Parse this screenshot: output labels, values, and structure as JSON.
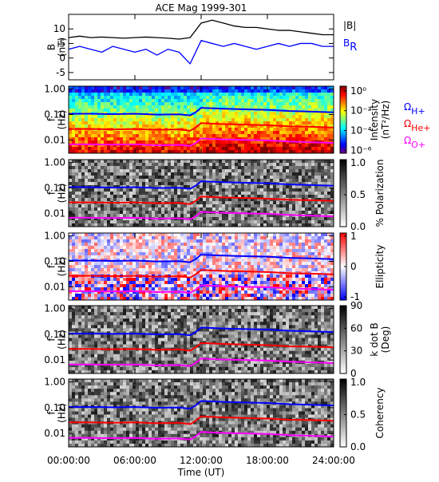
{
  "chart_data": [
    {
      "type": "line",
      "title": "ACE Mag 1999-301",
      "ylabel": [
        "B",
        "(nT)"
      ],
      "x": [
        0,
        1,
        2,
        3,
        4,
        5,
        6,
        7,
        8,
        9,
        10,
        11,
        12,
        13,
        14,
        15,
        16,
        17,
        18,
        19,
        20,
        21,
        22,
        23,
        24
      ],
      "xlim": [
        0,
        24
      ],
      "ylim": [
        -7.5,
        15
      ],
      "yticks": [
        -5,
        0,
        5,
        10
      ],
      "series": [
        {
          "name": "|B|",
          "color": "#000000",
          "values": [
            7,
            7.5,
            7,
            7.2,
            7,
            6.8,
            7,
            7.2,
            7,
            6.8,
            6.5,
            7,
            12,
            13,
            12,
            11,
            10.5,
            10.5,
            10,
            9.5,
            9.5,
            9,
            8.5,
            8,
            8
          ]
        },
        {
          "name": "B",
          "name_sub": "R",
          "color": "#0000ff",
          "values": [
            3,
            4,
            3,
            2,
            4,
            3,
            2,
            3,
            1,
            3,
            2,
            -2,
            6,
            5,
            4,
            5,
            4,
            3,
            4,
            5,
            4,
            5,
            5,
            4,
            4
          ]
        }
      ]
    },
    {
      "type": "spectrogram",
      "ylabel": [
        "f",
        "(Hz)"
      ],
      "log_y": true,
      "ylim": [
        0.003,
        1.3
      ],
      "yticks": [
        {
          "value": 1,
          "label": "1.00"
        },
        {
          "value": 0.1,
          "label": "0.10"
        },
        {
          "value": 0.01,
          "label": "0.01"
        }
      ],
      "x": [
        0,
        2,
        4,
        6,
        8,
        10,
        11,
        11.5,
        12,
        14,
        16,
        18,
        20,
        22,
        24
      ],
      "xlim": [
        0,
        24
      ],
      "colormap": "jet",
      "log_c": true,
      "clim": [
        5e-07,
        3
      ],
      "cticks": [
        {
          "value": 1,
          "label": "10⁰"
        },
        {
          "value": 0.01,
          "label": "10⁻²"
        },
        {
          "value": 0.0001,
          "label": "10⁻⁴"
        },
        {
          "value": 1e-06,
          "label": "10⁻⁶"
        }
      ],
      "clabel": [
        "Intensity",
        "(nT²/Hz)"
      ],
      "series": [
        {
          "name": "Ω",
          "name_sub": "H+",
          "color": "#0000ff",
          "values": [
            0.107,
            0.107,
            0.104,
            0.107,
            0.099,
            0.102,
            0.092,
            0.122,
            0.183,
            0.168,
            0.16,
            0.153,
            0.137,
            0.13,
            0.122
          ]
        },
        {
          "name": "Ω",
          "name_sub": "He+",
          "color": "#ff0000",
          "values": [
            0.027,
            0.027,
            0.026,
            0.027,
            0.025,
            0.026,
            0.023,
            0.031,
            0.046,
            0.042,
            0.04,
            0.038,
            0.034,
            0.033,
            0.031
          ]
        },
        {
          "name": "Ω",
          "name_sub": "O+",
          "color": "#ff00ff",
          "values": [
            0.0067,
            0.0067,
            0.0065,
            0.0067,
            0.0062,
            0.0064,
            0.0058,
            0.0076,
            0.0114,
            0.0105,
            0.01,
            0.0096,
            0.0086,
            0.0081,
            0.0076
          ]
        }
      ]
    },
    {
      "type": "spectrogram",
      "ylabel": [
        "f",
        "(Hz)"
      ],
      "log_y": true,
      "ylim": [
        0.003,
        1.3
      ],
      "yticks": [
        {
          "value": 1,
          "label": "1.00"
        },
        {
          "value": 0.1,
          "label": "0.10"
        },
        {
          "value": 0.01,
          "label": "0.01"
        }
      ],
      "x": [
        0,
        2,
        4,
        6,
        8,
        10,
        11,
        11.5,
        12,
        14,
        16,
        18,
        20,
        22,
        24
      ],
      "xlim": [
        0,
        24
      ],
      "colormap": "gray_r",
      "clim": [
        0,
        1.05
      ],
      "cticks": [
        {
          "value": 0,
          "label": "0.0"
        },
        {
          "value": 0.5,
          "label": "0.5"
        },
        {
          "value": 1,
          "label": "1.0"
        }
      ],
      "clabel": [
        "% Polarization"
      ],
      "series": [
        {
          "color": "#0000ff",
          "values": [
            0.107,
            0.107,
            0.104,
            0.107,
            0.099,
            0.102,
            0.092,
            0.122,
            0.183,
            0.168,
            0.16,
            0.153,
            0.137,
            0.13,
            0.122
          ]
        },
        {
          "color": "#ff0000",
          "values": [
            0.027,
            0.027,
            0.026,
            0.027,
            0.025,
            0.026,
            0.023,
            0.031,
            0.046,
            0.042,
            0.04,
            0.038,
            0.034,
            0.033,
            0.031
          ]
        },
        {
          "color": "#ff00ff",
          "values": [
            0.0067,
            0.0067,
            0.0065,
            0.0067,
            0.0062,
            0.0064,
            0.0058,
            0.0076,
            0.0114,
            0.0105,
            0.01,
            0.0096,
            0.0086,
            0.0081,
            0.0076
          ]
        }
      ]
    },
    {
      "type": "spectrogram",
      "ylabel": [
        "f",
        "(Hz)"
      ],
      "log_y": true,
      "ylim": [
        0.003,
        1.3
      ],
      "yticks": [
        {
          "value": 1,
          "label": "1.00"
        },
        {
          "value": 0.1,
          "label": "0.10"
        },
        {
          "value": 0.01,
          "label": "0.01"
        }
      ],
      "x": [
        0,
        2,
        4,
        6,
        8,
        10,
        11,
        11.5,
        12,
        14,
        16,
        18,
        20,
        22,
        24
      ],
      "xlim": [
        0,
        24
      ],
      "colormap": "bwr",
      "clim": [
        -1.1,
        1.1
      ],
      "cticks": [
        1,
        0,
        -1
      ],
      "clabel": [
        "Ellipticity"
      ],
      "series": [
        {
          "color": "#0000ff",
          "values": [
            0.107,
            0.107,
            0.104,
            0.107,
            0.099,
            0.102,
            0.092,
            0.122,
            0.183,
            0.168,
            0.16,
            0.153,
            0.137,
            0.13,
            0.122
          ]
        },
        {
          "color": "#ff0000",
          "values": [
            0.027,
            0.027,
            0.026,
            0.027,
            0.025,
            0.026,
            0.023,
            0.031,
            0.046,
            0.042,
            0.04,
            0.038,
            0.034,
            0.033,
            0.031
          ]
        },
        {
          "color": "#ff00ff",
          "values": [
            0.0067,
            0.0067,
            0.0065,
            0.0067,
            0.0062,
            0.0064,
            0.0058,
            0.0076,
            0.0114,
            0.0105,
            0.01,
            0.0096,
            0.0086,
            0.0081,
            0.0076
          ]
        }
      ]
    },
    {
      "type": "spectrogram",
      "ylabel": [
        "f",
        "(Hz)"
      ],
      "log_y": true,
      "ylim": [
        0.003,
        1.3
      ],
      "yticks": [
        {
          "value": 1,
          "label": "1.00"
        },
        {
          "value": 0.1,
          "label": "0.10"
        },
        {
          "value": 0.01,
          "label": "0.01"
        }
      ],
      "x": [
        0,
        2,
        4,
        6,
        8,
        10,
        11,
        11.5,
        12,
        14,
        16,
        18,
        20,
        22,
        24
      ],
      "xlim": [
        0,
        24
      ],
      "colormap": "gray_r",
      "clim": [
        0,
        90
      ],
      "cticks": [
        0,
        30,
        60,
        90
      ],
      "clabel": [
        "k dot B",
        "(Deg)"
      ],
      "series": [
        {
          "color": "#0000ff",
          "values": [
            0.107,
            0.107,
            0.104,
            0.107,
            0.099,
            0.102,
            0.092,
            0.122,
            0.183,
            0.168,
            0.16,
            0.153,
            0.137,
            0.13,
            0.122
          ]
        },
        {
          "color": "#ff0000",
          "values": [
            0.027,
            0.027,
            0.026,
            0.027,
            0.025,
            0.026,
            0.023,
            0.031,
            0.046,
            0.042,
            0.04,
            0.038,
            0.034,
            0.033,
            0.031
          ]
        },
        {
          "color": "#ff00ff",
          "values": [
            0.0067,
            0.0067,
            0.0065,
            0.0067,
            0.0062,
            0.0064,
            0.0058,
            0.0076,
            0.0114,
            0.0105,
            0.01,
            0.0096,
            0.0086,
            0.0081,
            0.0076
          ]
        }
      ]
    },
    {
      "type": "spectrogram",
      "ylabel": [
        "f",
        "(Hz)"
      ],
      "log_y": true,
      "ylim": [
        0.003,
        1.3
      ],
      "yticks": [
        {
          "value": 1,
          "label": "1.00"
        },
        {
          "value": 0.1,
          "label": "0.10"
        },
        {
          "value": 0.01,
          "label": "0.01"
        }
      ],
      "x": [
        0,
        2,
        4,
        6,
        8,
        10,
        11,
        11.5,
        12,
        14,
        16,
        18,
        20,
        22,
        24
      ],
      "xlim": [
        0,
        24
      ],
      "xticks": [
        {
          "value": 0,
          "label": "00:00:00"
        },
        {
          "value": 6,
          "label": "06:00:00"
        },
        {
          "value": 12,
          "label": "12:00:00"
        },
        {
          "value": 18,
          "label": "18:00:00"
        },
        {
          "value": 24,
          "label": "24:00:00"
        }
      ],
      "xlabel": "Time (UT)",
      "colormap": "gray_r",
      "clim": [
        0,
        1.05
      ],
      "cticks": [
        {
          "value": 0,
          "label": "0.0"
        },
        {
          "value": 0.5,
          "label": "0.5"
        },
        {
          "value": 1,
          "label": "1.0"
        }
      ],
      "clabel": [
        "Coherency"
      ],
      "series": [
        {
          "color": "#0000ff",
          "values": [
            0.107,
            0.107,
            0.104,
            0.107,
            0.099,
            0.102,
            0.092,
            0.122,
            0.183,
            0.168,
            0.16,
            0.153,
            0.137,
            0.13,
            0.122
          ]
        },
        {
          "color": "#ff0000",
          "values": [
            0.027,
            0.027,
            0.026,
            0.027,
            0.025,
            0.026,
            0.023,
            0.031,
            0.046,
            0.042,
            0.04,
            0.038,
            0.034,
            0.033,
            0.031
          ]
        },
        {
          "color": "#ff00ff",
          "values": [
            0.0067,
            0.0067,
            0.0065,
            0.0067,
            0.0062,
            0.0064,
            0.0058,
            0.0076,
            0.0114,
            0.0105,
            0.01,
            0.0096,
            0.0086,
            0.0081,
            0.0076
          ]
        }
      ]
    }
  ]
}
